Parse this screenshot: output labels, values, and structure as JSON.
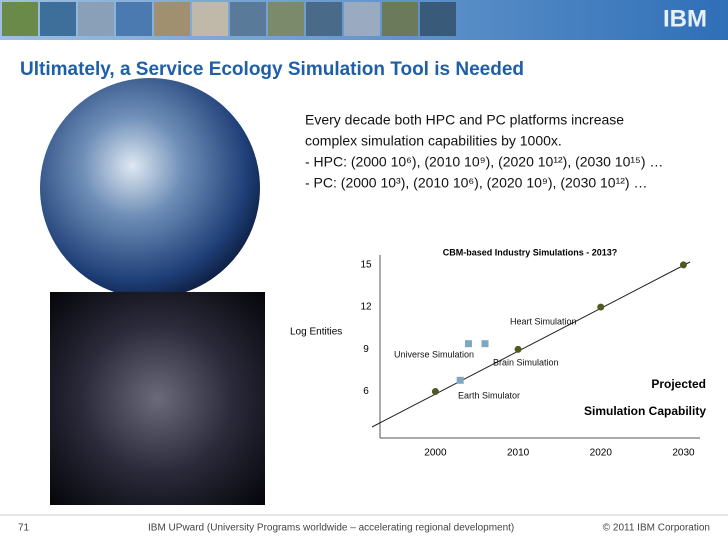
{
  "header": {
    "logo": "IBM",
    "title": "Ultimately, a Service Ecology Simulation Tool is Needed"
  },
  "body": {
    "lines": [
      "Every decade both HPC and PC platforms increase",
      "complex simulation capabilities by 1000x.",
      "- HPC: (2000 10⁶), (2010 10⁹), (2020 10¹²), (2030 10¹⁵) …",
      "- PC:    (2000 10³), (2010 10⁶), (2020 10⁹), (2030 10¹²) …"
    ]
  },
  "chart_data": {
    "type": "scatter",
    "title": "CBM-based Industry Simulations - 2013?",
    "y_label": "Log Entities",
    "xlim": [
      1993.3,
      2032
    ],
    "ylim": [
      2.7,
      15.7
    ],
    "xticks": [
      2000,
      2010,
      2020,
      2030
    ],
    "yticks": [
      6,
      9,
      12,
      15
    ],
    "series": [
      {
        "color": "#4e5a1f",
        "x": [
          2000,
          2010,
          2020,
          2030
        ],
        "values": [
          6,
          9,
          12,
          15
        ]
      },
      {
        "color": "#7fa7c0",
        "x": [
          2003,
          2004,
          2006
        ],
        "values": [
          6.8,
          9.4,
          9.4
        ]
      }
    ],
    "annotations": [
      "Heart Simulation",
      "Universe Simulation",
      "Brain Simulation",
      "Earth Simulator",
      "Projected",
      "Simulation Capability"
    ]
  },
  "footer": {
    "page": "71",
    "text": "IBM UPward (University Programs worldwide – accelerating regional development)",
    "copyright": "© 2011 IBM Corporation"
  }
}
